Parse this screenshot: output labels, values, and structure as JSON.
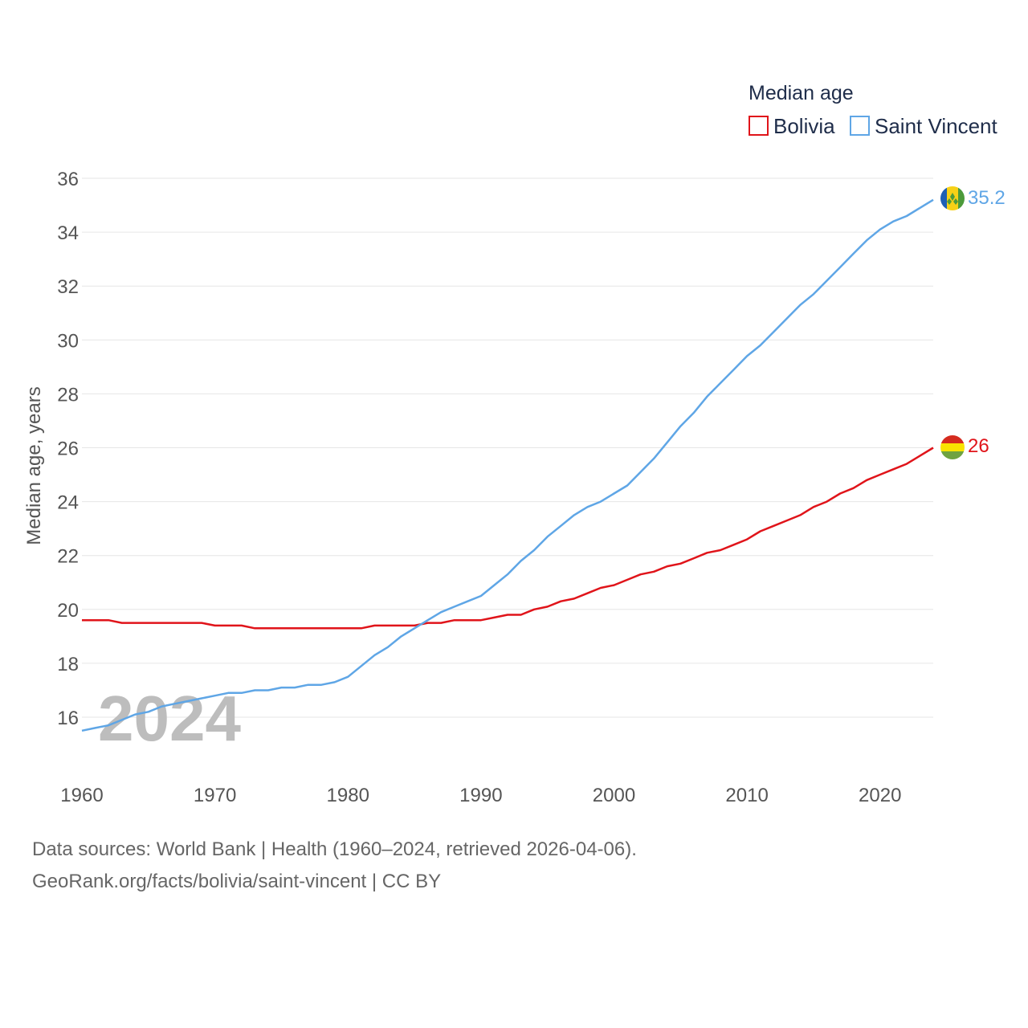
{
  "chart_data": {
    "type": "line",
    "legend": {
      "title": "Median age",
      "position": "top-right"
    },
    "ylabel": "Median age, years",
    "xlabel": "",
    "ylim": [
      15,
      36.5
    ],
    "xlim": [
      1960,
      2024
    ],
    "yticks": [
      16,
      18,
      20,
      22,
      24,
      26,
      28,
      30,
      32,
      34,
      36
    ],
    "xticks": [
      1960,
      1970,
      1980,
      1990,
      2000,
      2010,
      2020
    ],
    "grid": true,
    "current_year": "2024",
    "x": [
      1960,
      1961,
      1962,
      1963,
      1964,
      1965,
      1966,
      1967,
      1968,
      1969,
      1970,
      1971,
      1972,
      1973,
      1974,
      1975,
      1976,
      1977,
      1978,
      1979,
      1980,
      1981,
      1982,
      1983,
      1984,
      1985,
      1986,
      1987,
      1988,
      1989,
      1990,
      1991,
      1992,
      1993,
      1994,
      1995,
      1996,
      1997,
      1998,
      1999,
      2000,
      2001,
      2002,
      2003,
      2004,
      2005,
      2006,
      2007,
      2008,
      2009,
      2010,
      2011,
      2012,
      2013,
      2014,
      2015,
      2016,
      2017,
      2018,
      2019,
      2020,
      2021,
      2022,
      2023,
      2024
    ],
    "series": [
      {
        "name": "Bolivia",
        "color": "#e0141a",
        "end_label": "26",
        "flag": "bolivia-flag-icon",
        "values": [
          19.6,
          19.6,
          19.6,
          19.5,
          19.5,
          19.5,
          19.5,
          19.5,
          19.5,
          19.5,
          19.4,
          19.4,
          19.4,
          19.3,
          19.3,
          19.3,
          19.3,
          19.3,
          19.3,
          19.3,
          19.3,
          19.3,
          19.4,
          19.4,
          19.4,
          19.4,
          19.5,
          19.5,
          19.6,
          19.6,
          19.6,
          19.7,
          19.8,
          19.8,
          20.0,
          20.1,
          20.3,
          20.4,
          20.6,
          20.8,
          20.9,
          21.1,
          21.3,
          21.4,
          21.6,
          21.7,
          21.9,
          22.1,
          22.2,
          22.4,
          22.6,
          22.9,
          23.1,
          23.3,
          23.5,
          23.8,
          24.0,
          24.3,
          24.5,
          24.8,
          25.0,
          25.2,
          25.4,
          25.7,
          26.0
        ]
      },
      {
        "name": "Saint Vincent",
        "color": "#5fa6e6",
        "end_label": "35.2",
        "flag": "saint-vincent-flag-icon",
        "values": [
          15.5,
          15.6,
          15.7,
          15.9,
          16.1,
          16.2,
          16.4,
          16.5,
          16.6,
          16.7,
          16.8,
          16.9,
          16.9,
          17.0,
          17.0,
          17.1,
          17.1,
          17.2,
          17.2,
          17.3,
          17.5,
          17.9,
          18.3,
          18.6,
          19.0,
          19.3,
          19.6,
          19.9,
          20.1,
          20.3,
          20.5,
          20.9,
          21.3,
          21.8,
          22.2,
          22.7,
          23.1,
          23.5,
          23.8,
          24.0,
          24.3,
          24.6,
          25.1,
          25.6,
          26.2,
          26.8,
          27.3,
          27.9,
          28.4,
          28.9,
          29.4,
          29.8,
          30.3,
          30.8,
          31.3,
          31.7,
          32.2,
          32.7,
          33.2,
          33.7,
          34.1,
          34.4,
          34.6,
          34.9,
          35.2
        ]
      }
    ],
    "source_line1": "Data sources: World Bank | Health (1960–2024, retrieved 2026-04-06).",
    "source_line2": "GeoRank.org/facts/bolivia/saint-vincent | CC BY"
  }
}
